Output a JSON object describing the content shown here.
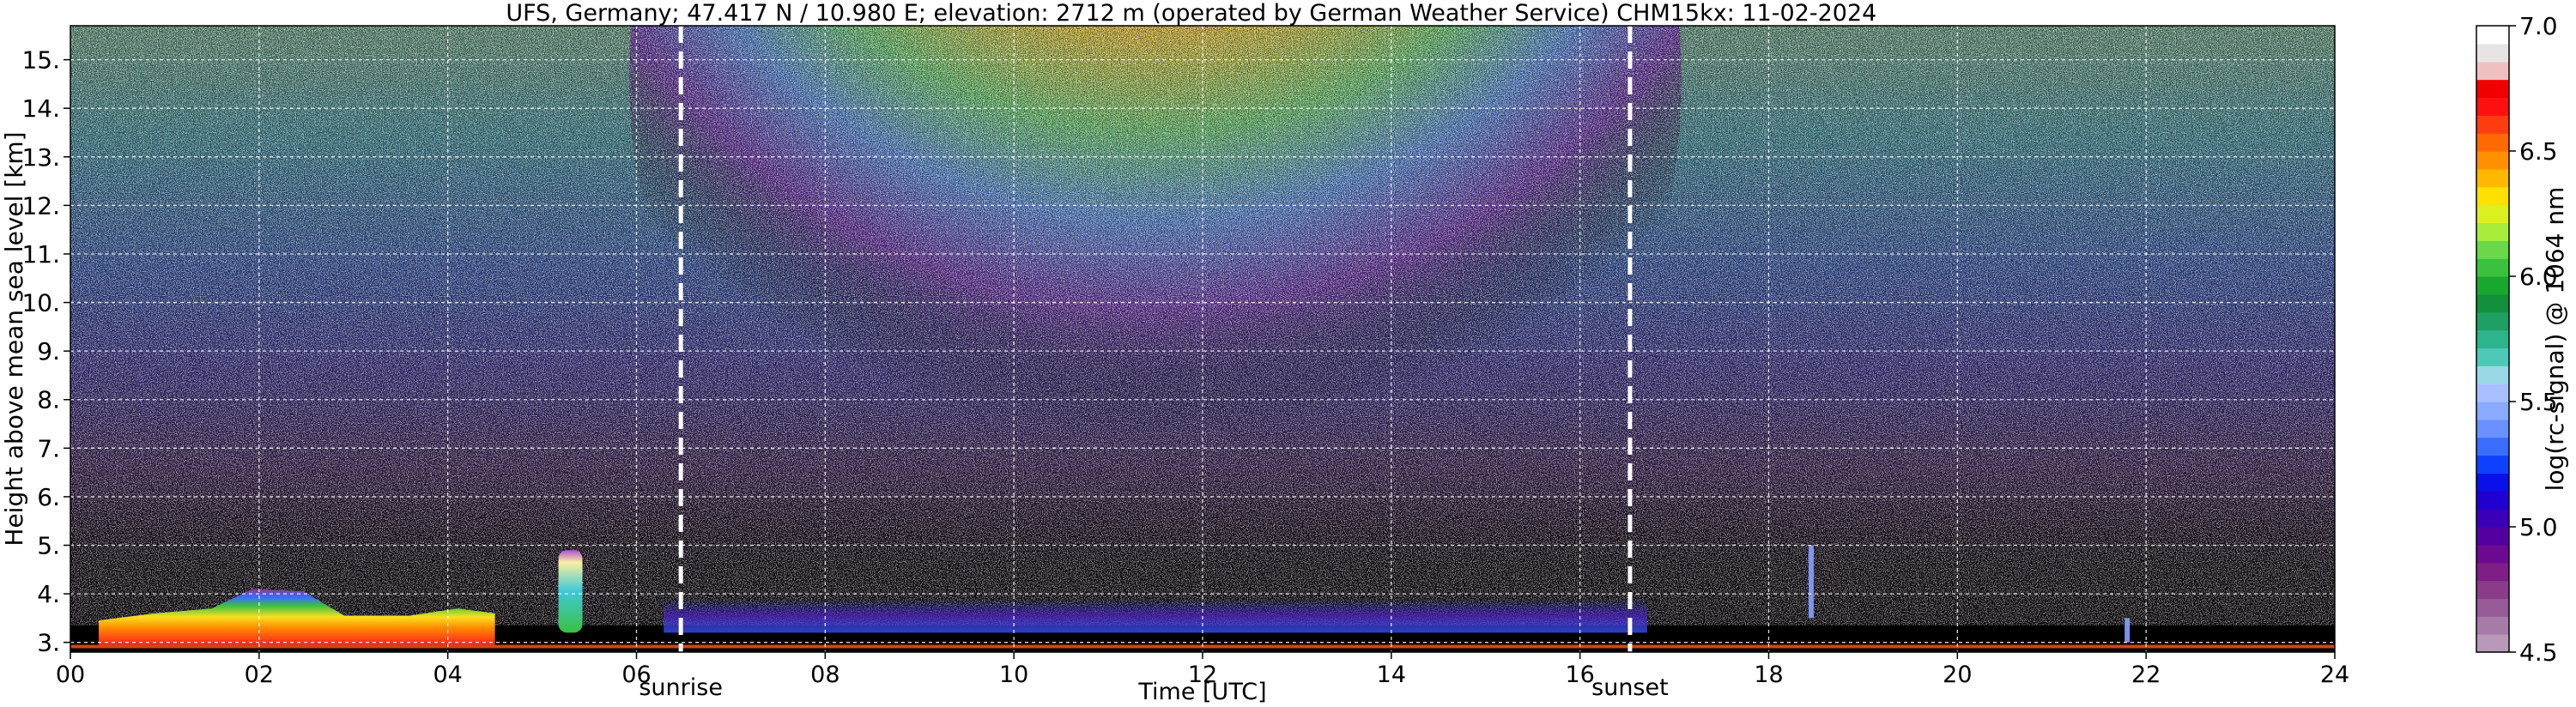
{
  "chart_data": {
    "type": "heatmap",
    "title": "UFS, Germany; 47.417 N / 10.980 E; elevation: 2712 m  (operated by German Weather Service)     CHM15kx: 11-02-2024",
    "xlabel": "Time [UTC]",
    "ylabel": "Height above mean sea level [km]",
    "xlim": [
      0,
      24
    ],
    "ylim": [
      2.8,
      15.7
    ],
    "x_ticks": [
      0,
      2,
      4,
      6,
      8,
      10,
      12,
      14,
      16,
      18,
      20,
      22,
      24
    ],
    "x_tick_labels": [
      "00",
      "02",
      "04",
      "06",
      "08",
      "10",
      "12",
      "14",
      "16",
      "18",
      "20",
      "22",
      "24"
    ],
    "y_ticks": [
      3,
      4,
      5,
      6,
      7,
      8,
      9,
      10,
      11,
      12,
      13,
      14,
      15
    ],
    "y_tick_labels": [
      "3.",
      "4.",
      "5.",
      "6.",
      "7.",
      "8.",
      "9.",
      "10.",
      "11.",
      "12.",
      "13.",
      "14.",
      "15."
    ],
    "grid": true,
    "background_color": "#000000",
    "annotations": [
      {
        "label": "sunrise",
        "x": 6.47
      },
      {
        "label": "sunset",
        "x": 16.53
      }
    ],
    "colorbar": {
      "label": "log(rc-signal) @ 1064 nm",
      "range": [
        4.5,
        7.0
      ],
      "ticks": [
        4.5,
        5.0,
        5.5,
        6.0,
        6.5,
        7.0
      ],
      "tick_labels": [
        "4.5",
        "5.0",
        "5.5",
        "6.0",
        "6.5",
        "7.0"
      ],
      "colors": [
        "#b89ab8",
        "#a77ba7",
        "#965a96",
        "#8a3c8a",
        "#7d1f87",
        "#6b0a90",
        "#5200a0",
        "#3a00b8",
        "#2000d0",
        "#0a10e8",
        "#1040ff",
        "#3a6cff",
        "#6a90ff",
        "#8aaaff",
        "#a8c0ff",
        "#9ad8e6",
        "#4ec9b8",
        "#2cb48c",
        "#1ea064",
        "#12903c",
        "#18a830",
        "#3cc040",
        "#6ad848",
        "#a8ec3c",
        "#dcf020",
        "#ffe000",
        "#ffb800",
        "#ff9000",
        "#ff6a00",
        "#ff3c10",
        "#ff1010",
        "#f00000",
        "#f0c0c0",
        "#e8e4e4",
        "#ffffff"
      ]
    },
    "features": [
      {
        "kind": "low-cloud layer",
        "x_start": 0.3,
        "x_end": 4.5,
        "y_top": 4.1,
        "peak_time": 2.2
      },
      {
        "kind": "cloud plume",
        "x": 5.3,
        "y_base": 3.2,
        "y_top": 4.9
      },
      {
        "kind": "thin cloud",
        "x": 18.45,
        "y_base": 3.5,
        "y_top": 5.0
      },
      {
        "kind": "thin cloud",
        "x": 21.8,
        "y_base": 3.0,
        "y_top": 3.5
      }
    ]
  }
}
